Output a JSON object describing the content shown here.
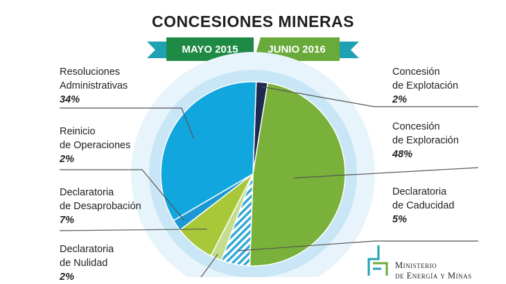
{
  "title": "CONCESIONES MINERAS",
  "ribbon": {
    "left_label": "MAYO 2015",
    "right_label": "JUNIO 2016"
  },
  "colors": {
    "explotacion": "#1b2a4e",
    "exploracion": "#7ab13a",
    "caducidad": "#33a8d8",
    "nulidad": "#c4dc8e",
    "desaprobacion": "#a8c83a",
    "reinicio": "#1c99d4",
    "resoluciones": "#12a6df",
    "ring_outer": "#e7f4fb",
    "ring_inner": "#c8e6f5",
    "ribbon_green": "#1e8a45",
    "ribbon_light": "#6aaa3a",
    "ribbon_teal": "#1fa1b4"
  },
  "labels": {
    "resoluciones": {
      "line1": "Resoluciones",
      "line2": "Administrativas",
      "pct": "34%"
    },
    "reinicio": {
      "line1": "Reinicio",
      "line2": "de Operaciones",
      "pct": "2%"
    },
    "desaprobacion": {
      "line1": "Declaratoria",
      "line2": "de Desaprobación",
      "pct": "7%"
    },
    "nulidad": {
      "line1": "Declaratoria",
      "line2": "de Nulidad",
      "pct": "2%"
    },
    "explotacion": {
      "line1": "Concesión",
      "line2": "de Explotación",
      "pct": "2%"
    },
    "exploracion": {
      "line1": "Concesión",
      "line2": "de Exploración",
      "pct": "48%"
    },
    "caducidad": {
      "line1": "Declaratoria",
      "line2": "de Caducidad",
      "pct": "5%"
    }
  },
  "logo": {
    "line1": "Ministerio",
    "line2": "de Energía y Minas"
  },
  "chart_data": {
    "type": "pie",
    "title": "CONCESIONES MINERAS",
    "subtitle": [
      "MAYO 2015",
      "JUNIO 2016"
    ],
    "categories": [
      "Concesión de Explotación",
      "Concesión de Exploración",
      "Declaratoria de Caducidad",
      "Declaratoria de Nulidad",
      "Declaratoria de Desaprobación",
      "Reinicio de Operaciones",
      "Resoluciones Administrativas"
    ],
    "values": [
      2,
      48,
      5,
      2,
      7,
      2,
      34
    ],
    "legend": "labels-with-leader-lines"
  }
}
